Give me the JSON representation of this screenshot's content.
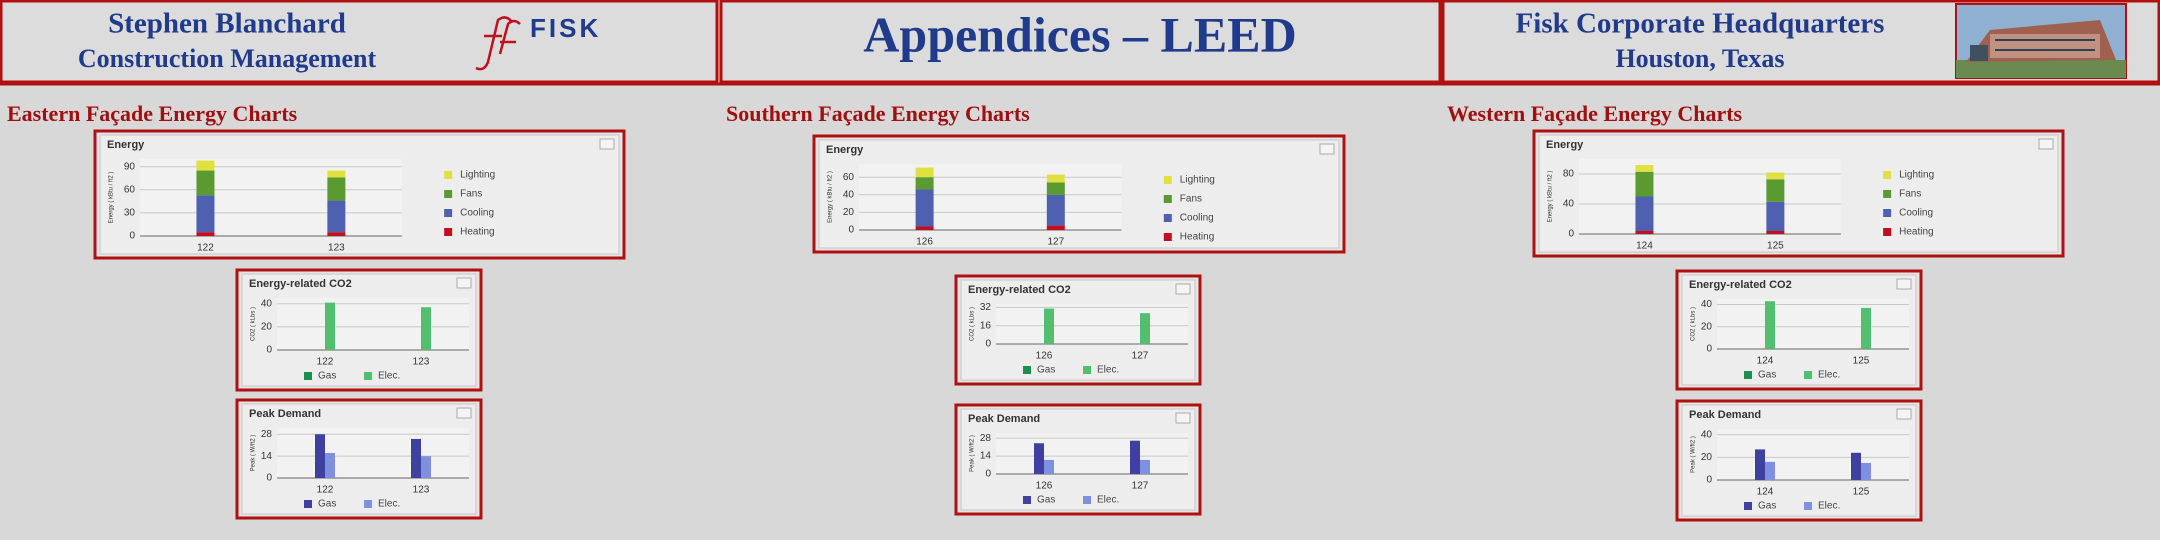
{
  "header": {
    "left_title": "Stephen Blanchard",
    "left_subtitle": "Construction Management",
    "logo": "FISK",
    "center_title": "Appendices – LEED",
    "right_title": "Fisk Corporate Headquarters",
    "right_subtitle": "Houston, Texas"
  },
  "sections": [
    "Eastern Façade Energy Charts",
    "Southern Façade Energy Charts",
    "Western Façade Energy Charts"
  ],
  "chart_data": [
    {
      "type": "bar",
      "stacked": true,
      "legend": "right",
      "title": "Energy",
      "ylabel": "Energy ( kBtu / ft2 )",
      "categories": [
        "122",
        "123"
      ],
      "ylim": [
        0,
        100
      ],
      "yticks": [
        0,
        30,
        60,
        90
      ],
      "grid": true,
      "series": [
        {
          "name": "Heating",
          "color": "#c01020",
          "values": [
            5,
            5
          ]
        },
        {
          "name": "Cooling",
          "color": "#5060b0",
          "values": [
            48,
            41
          ]
        },
        {
          "name": "Fans",
          "color": "#5a9a30",
          "values": [
            32,
            30
          ]
        },
        {
          "name": "Lighting",
          "color": "#e0e040",
          "values": [
            13,
            9
          ]
        }
      ]
    },
    {
      "type": "bar",
      "stacked": false,
      "legend": "bottom",
      "title": "Energy-related CO2",
      "ylabel": "CO2 ( kLbs )",
      "categories": [
        "122",
        "123"
      ],
      "ylim": [
        0,
        45
      ],
      "yticks": [
        0,
        20,
        40
      ],
      "grid": true,
      "series": [
        {
          "name": "Gas",
          "color": "#1a9050",
          "values": [
            0,
            0
          ]
        },
        {
          "name": "Elec.",
          "color": "#50c070",
          "values": [
            41,
            37
          ]
        }
      ]
    },
    {
      "type": "bar",
      "stacked": false,
      "legend": "bottom",
      "title": "Peak Demand",
      "ylabel": "Peak ( W/ft2 )",
      "categories": [
        "122",
        "123"
      ],
      "ylim": [
        0,
        32
      ],
      "yticks": [
        0,
        14,
        28
      ],
      "grid": true,
      "series": [
        {
          "name": "Gas",
          "color": "#4040a0",
          "values": [
            28,
            25
          ]
        },
        {
          "name": "Elec.",
          "color": "#8090e0",
          "values": [
            16,
            14
          ]
        }
      ]
    },
    {
      "type": "bar",
      "stacked": true,
      "legend": "right",
      "title": "Energy",
      "ylabel": "Energy ( kBtu / ft2 )",
      "categories": [
        "126",
        "127"
      ],
      "ylim": [
        0,
        75
      ],
      "yticks": [
        0,
        20,
        40,
        60
      ],
      "grid": true,
      "series": [
        {
          "name": "Heating",
          "color": "#c01020",
          "values": [
            4,
            5
          ]
        },
        {
          "name": "Cooling",
          "color": "#5060b0",
          "values": [
            42,
            35
          ]
        },
        {
          "name": "Fans",
          "color": "#5a9a30",
          "values": [
            14,
            14
          ]
        },
        {
          "name": "Lighting",
          "color": "#e0e040",
          "values": [
            11,
            9
          ]
        }
      ]
    },
    {
      "type": "bar",
      "stacked": false,
      "legend": "bottom",
      "title": "Energy-related CO2",
      "ylabel": "CO2 ( kLbs )",
      "categories": [
        "126",
        "127"
      ],
      "ylim": [
        0,
        35
      ],
      "yticks": [
        0,
        16,
        32
      ],
      "grid": true,
      "series": [
        {
          "name": "Gas",
          "color": "#1a9050",
          "values": [
            0,
            0
          ]
        },
        {
          "name": "Elec.",
          "color": "#50c070",
          "values": [
            31,
            27
          ]
        }
      ]
    },
    {
      "type": "bar",
      "stacked": false,
      "legend": "bottom",
      "title": "Peak Demand",
      "ylabel": "Peak ( W/ft2 )",
      "categories": [
        "126",
        "127"
      ],
      "ylim": [
        0,
        32
      ],
      "yticks": [
        0,
        14,
        28
      ],
      "grid": true,
      "series": [
        {
          "name": "Gas",
          "color": "#4040a0",
          "values": [
            24,
            26
          ]
        },
        {
          "name": "Elec.",
          "color": "#8090e0",
          "values": [
            11,
            11
          ]
        }
      ]
    },
    {
      "type": "bar",
      "stacked": true,
      "legend": "right",
      "title": "Energy",
      "ylabel": "Energy ( kBtu / ft2 )",
      "categories": [
        "124",
        "125"
      ],
      "ylim": [
        0,
        100
      ],
      "yticks": [
        0,
        40,
        80
      ],
      "grid": true,
      "series": [
        {
          "name": "Heating",
          "color": "#c01020",
          "values": [
            4,
            4
          ]
        },
        {
          "name": "Cooling",
          "color": "#5060b0",
          "values": [
            46,
            39
          ]
        },
        {
          "name": "Fans",
          "color": "#5a9a30",
          "values": [
            33,
            30
          ]
        },
        {
          "name": "Lighting",
          "color": "#e0e040",
          "values": [
            9,
            9
          ]
        }
      ]
    },
    {
      "type": "bar",
      "stacked": false,
      "legend": "bottom",
      "title": "Energy-related CO2",
      "ylabel": "CO2 ( kLbs )",
      "categories": [
        "124",
        "125"
      ],
      "ylim": [
        0,
        45
      ],
      "yticks": [
        0,
        20,
        40
      ],
      "grid": true,
      "series": [
        {
          "name": "Gas",
          "color": "#1a9050",
          "values": [
            0,
            0
          ]
        },
        {
          "name": "Elec.",
          "color": "#50c070",
          "values": [
            43,
            37
          ]
        }
      ]
    },
    {
      "type": "bar",
      "stacked": false,
      "legend": "bottom",
      "title": "Peak Demand",
      "ylabel": "Peak ( W/ft2 )",
      "categories": [
        "124",
        "125"
      ],
      "ylim": [
        0,
        45
      ],
      "yticks": [
        0,
        20,
        40
      ],
      "grid": true,
      "series": [
        {
          "name": "Gas",
          "color": "#4040a0",
          "values": [
            27,
            24
          ]
        },
        {
          "name": "Elec.",
          "color": "#8090e0",
          "values": [
            16,
            15
          ]
        }
      ]
    }
  ]
}
